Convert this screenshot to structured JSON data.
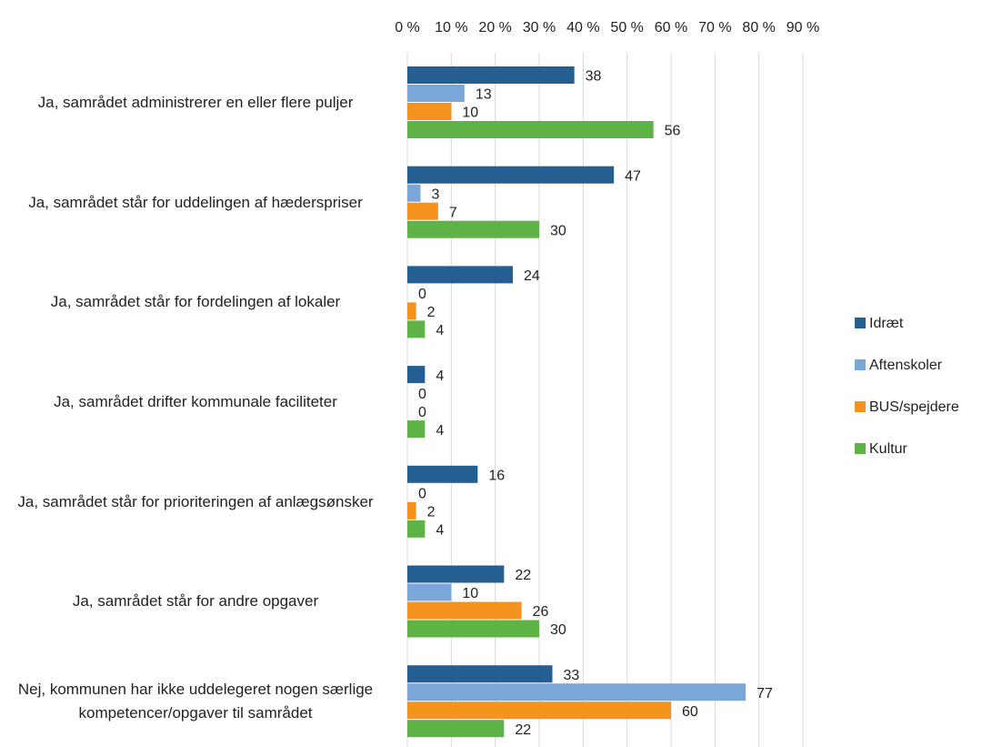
{
  "chart_data": {
    "type": "bar",
    "orientation": "horizontal",
    "categories": [
      "Ja, samrådet administrerer en eller flere puljer",
      "Ja, samrådet står for uddelingen af hæderspriser",
      "Ja, samrådet står for fordelingen af lokaler",
      "Ja, samrådet drifter kommunale faciliteter",
      "Ja, samrådet står for prioriteringen af anlægsønsker",
      "Ja, samrådet står for andre opgaver",
      "Nej, kommunen har ikke uddelegeret nogen særlige kompetencer/opgaver til samrådet"
    ],
    "series": [
      {
        "name": "Idræt",
        "color": "#255e91",
        "values": [
          38,
          47,
          24,
          4,
          16,
          22,
          33
        ]
      },
      {
        "name": "Aftenskoler",
        "color": "#7aa7d8",
        "values": [
          13,
          3,
          0,
          0,
          0,
          10,
          77
        ]
      },
      {
        "name": "BUS/spejdere",
        "color": "#f4931e",
        "values": [
          10,
          7,
          2,
          0,
          2,
          26,
          60
        ]
      },
      {
        "name": "Kultur",
        "color": "#5fb246",
        "values": [
          56,
          30,
          4,
          4,
          4,
          30,
          22
        ]
      }
    ],
    "xlim": [
      0,
      90
    ],
    "xticks": [
      {
        "value": 0,
        "label": "0 %"
      },
      {
        "value": 10,
        "label": "10 %"
      },
      {
        "value": 20,
        "label": "20 %"
      },
      {
        "value": 30,
        "label": "30 %"
      },
      {
        "value": 40,
        "label": "40 %"
      },
      {
        "value": 50,
        "label": "50 %"
      },
      {
        "value": 60,
        "label": "60 %"
      },
      {
        "value": 70,
        "label": "70 %"
      },
      {
        "value": 80,
        "label": "80 %"
      },
      {
        "value": 90,
        "label": "90 %"
      }
    ],
    "grid": true,
    "legend": "right"
  }
}
